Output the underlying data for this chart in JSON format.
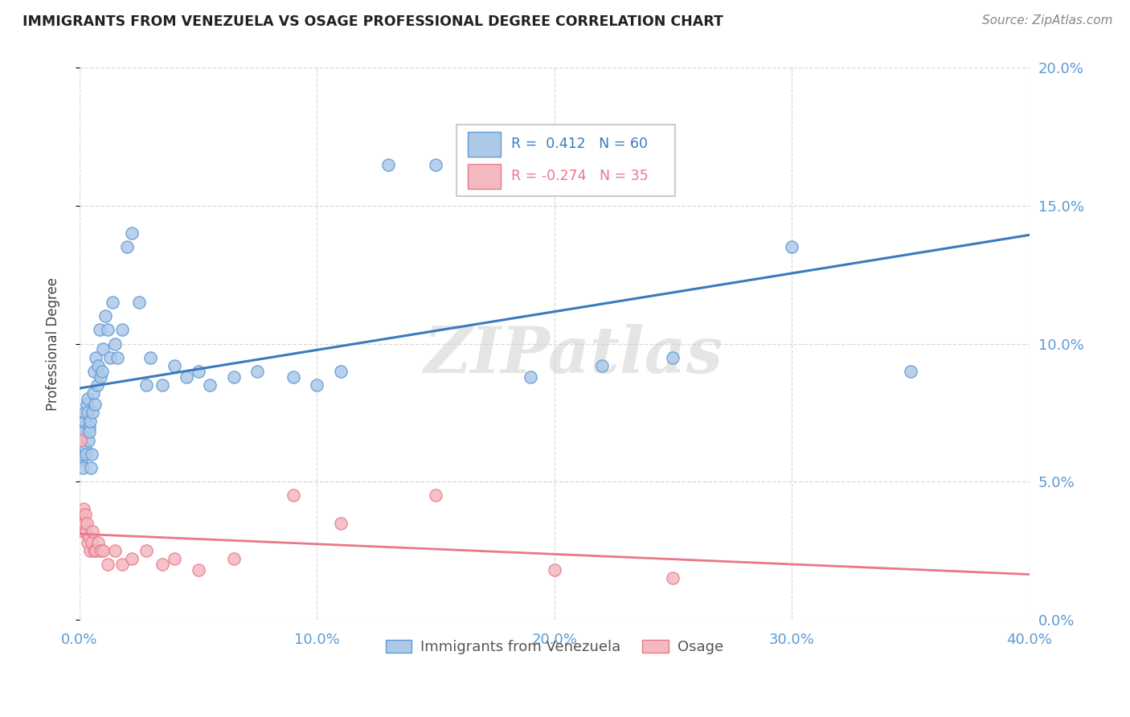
{
  "title": "IMMIGRANTS FROM VENEZUELA VS OSAGE PROFESSIONAL DEGREE CORRELATION CHART",
  "source": "Source: ZipAtlas.com",
  "ylabel": "Professional Degree",
  "xmin": 0.0,
  "xmax": 40.0,
  "ymin": 0.0,
  "ymax": 20.0,
  "yticks": [
    0.0,
    5.0,
    10.0,
    15.0,
    20.0
  ],
  "xticks": [
    0.0,
    10.0,
    20.0,
    30.0,
    40.0
  ],
  "blue_R": "0.412",
  "blue_N": "60",
  "pink_R": "-0.274",
  "pink_N": "35",
  "blue_color": "#aec8e8",
  "pink_color": "#f4b8c1",
  "blue_edge_color": "#5b9bd5",
  "pink_edge_color": "#e87a8a",
  "blue_line_color": "#3a7abf",
  "pink_line_color": "#e8788a",
  "watermark": "ZIPatlas",
  "legend_label_blue": "Immigrants from Venezuela",
  "legend_label_pink": "Osage",
  "blue_scatter_x": [
    0.05,
    0.08,
    0.1,
    0.12,
    0.15,
    0.18,
    0.2,
    0.22,
    0.25,
    0.28,
    0.3,
    0.33,
    0.35,
    0.38,
    0.4,
    0.42,
    0.45,
    0.48,
    0.5,
    0.55,
    0.58,
    0.6,
    0.65,
    0.7,
    0.75,
    0.8,
    0.85,
    0.9,
    0.95,
    1.0,
    1.1,
    1.2,
    1.3,
    1.4,
    1.5,
    1.6,
    1.8,
    2.0,
    2.2,
    2.5,
    2.8,
    3.0,
    3.5,
    4.0,
    4.5,
    5.0,
    5.5,
    6.5,
    7.5,
    9.0,
    10.0,
    11.0,
    13.0,
    15.0,
    17.0,
    19.0,
    22.0,
    25.0,
    30.0,
    35.0
  ],
  "blue_scatter_y": [
    6.5,
    5.8,
    6.0,
    7.0,
    5.5,
    6.8,
    7.2,
    7.5,
    6.2,
    6.0,
    7.8,
    8.0,
    7.5,
    6.5,
    7.0,
    6.8,
    7.2,
    5.5,
    6.0,
    7.5,
    8.2,
    9.0,
    7.8,
    9.5,
    8.5,
    9.2,
    10.5,
    8.8,
    9.0,
    9.8,
    11.0,
    10.5,
    9.5,
    11.5,
    10.0,
    9.5,
    10.5,
    13.5,
    14.0,
    11.5,
    8.5,
    9.5,
    8.5,
    9.2,
    8.8,
    9.0,
    8.5,
    8.8,
    9.0,
    8.8,
    8.5,
    9.0,
    16.5,
    16.5,
    16.5,
    8.8,
    9.2,
    9.5,
    13.5,
    9.0
  ],
  "pink_scatter_x": [
    0.05,
    0.08,
    0.1,
    0.12,
    0.15,
    0.18,
    0.2,
    0.22,
    0.25,
    0.28,
    0.3,
    0.35,
    0.4,
    0.45,
    0.5,
    0.55,
    0.6,
    0.7,
    0.8,
    0.9,
    1.0,
    1.2,
    1.5,
    1.8,
    2.2,
    2.8,
    3.5,
    4.0,
    5.0,
    6.5,
    9.0,
    11.0,
    15.0,
    20.0,
    25.0
  ],
  "pink_scatter_y": [
    6.5,
    3.5,
    3.8,
    3.5,
    3.2,
    4.0,
    3.5,
    3.5,
    3.8,
    3.2,
    3.5,
    2.8,
    3.0,
    2.5,
    2.8,
    3.2,
    2.5,
    2.5,
    2.8,
    2.5,
    2.5,
    2.0,
    2.5,
    2.0,
    2.2,
    2.5,
    2.0,
    2.2,
    1.8,
    2.2,
    4.5,
    3.5,
    4.5,
    1.8,
    1.5
  ]
}
